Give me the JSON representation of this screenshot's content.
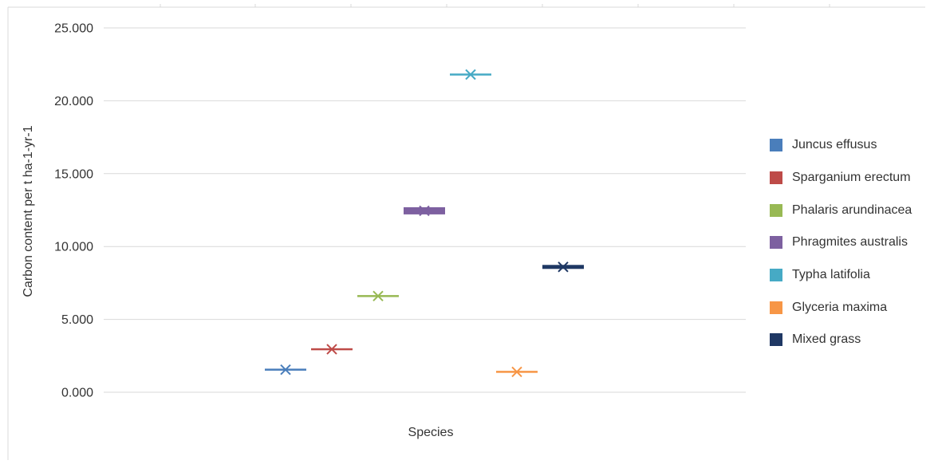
{
  "chart_data": {
    "type": "scatter",
    "title": "",
    "xlabel": "Species",
    "ylabel": "Carbon content per t ha-1-yr-1",
    "ylim": [
      0,
      25
    ],
    "yticks": [
      "0.000",
      "5.000",
      "10.000",
      "15.000",
      "20.000",
      "25.000"
    ],
    "grid": true,
    "legend_position": "right",
    "series": [
      {
        "name": "Juncus effusus",
        "value": 1.55,
        "color": "#4a7ebb"
      },
      {
        "name": "Sparganium erectum",
        "value": 2.95,
        "color": "#be4b48"
      },
      {
        "name": "Phalaris arundinacea",
        "value": 6.6,
        "color": "#98b954"
      },
      {
        "name": "Phragmites australis",
        "value": 12.45,
        "color": "#7d60a0"
      },
      {
        "name": "Typha latifolia",
        "value": 21.8,
        "color": "#46aac5"
      },
      {
        "name": "Glyceria maxima",
        "value": 1.4,
        "color": "#f79646"
      },
      {
        "name": "Mixed grass",
        "value": 8.6,
        "color": "#1f3864"
      }
    ]
  }
}
